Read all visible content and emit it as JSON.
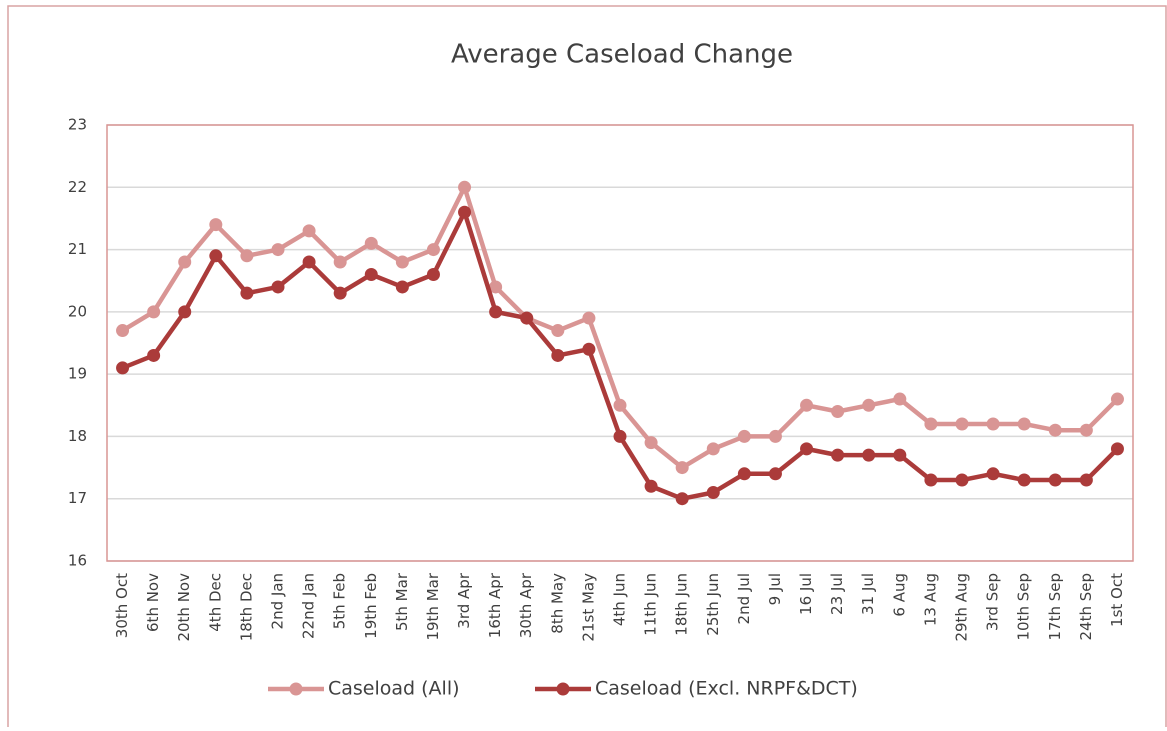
{
  "chart_data": {
    "type": "line",
    "title": "Average Caseload Change",
    "categories": [
      "30th Oct",
      "6th Nov",
      "20th Nov",
      "4th Dec",
      "18th Dec",
      "2nd Jan",
      "22nd Jan",
      "5th Feb",
      "19th Feb",
      "5th Mar",
      "19th Mar",
      "3rd Apr",
      "16th Apr",
      "30th Apr",
      "8th May",
      "21st May",
      "4th Jun",
      "11th Jun",
      "18th Jun",
      "25th Jun",
      "2nd Jul",
      "9 Jul",
      "16 Jul",
      "23 Jul",
      "31 Jul",
      "6 Aug",
      "13 Aug",
      "29th Aug",
      "3rd Sep",
      "10th Sep",
      "17th Sep",
      "24th Sep",
      "1st Oct"
    ],
    "series": [
      {
        "name": "Caseload (All)",
        "color": "#d99594",
        "values": [
          19.7,
          20.0,
          20.8,
          21.4,
          20.9,
          21.0,
          21.3,
          20.8,
          21.1,
          20.8,
          21.0,
          22.0,
          20.4,
          19.9,
          19.7,
          19.9,
          18.5,
          17.9,
          17.5,
          17.8,
          18.0,
          18.0,
          18.5,
          18.4,
          18.5,
          18.6,
          18.2,
          18.2,
          18.2,
          18.2,
          18.1,
          18.1,
          18.6
        ]
      },
      {
        "name": "Caseload (Excl. NRPF&DCT)",
        "color": "#ab3b3a",
        "values": [
          19.1,
          19.3,
          20.0,
          20.9,
          20.3,
          20.4,
          20.8,
          20.3,
          20.6,
          20.4,
          20.6,
          21.6,
          20.0,
          19.9,
          19.3,
          19.4,
          18.0,
          17.2,
          17.0,
          17.1,
          17.4,
          17.4,
          17.8,
          17.7,
          17.7,
          17.7,
          17.3,
          17.3,
          17.4,
          17.3,
          17.3,
          17.3,
          17.8
        ]
      }
    ],
    "ylim": [
      16,
      23
    ],
    "yticks": [
      16,
      17,
      18,
      19,
      20,
      21,
      22,
      23
    ],
    "grid": true,
    "legend": "bottom"
  }
}
